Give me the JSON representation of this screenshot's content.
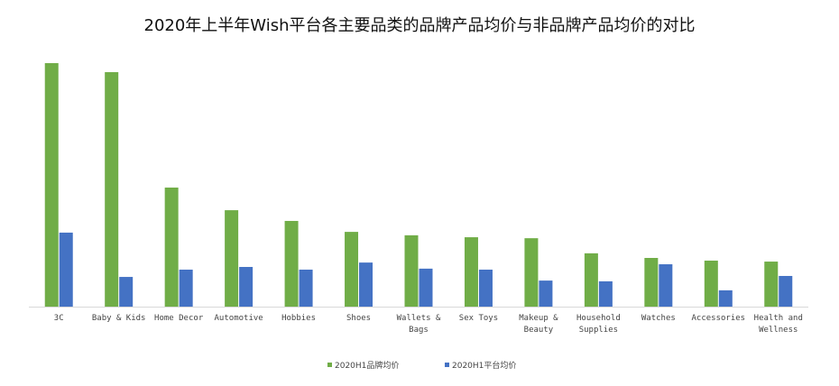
{
  "chart_data": {
    "type": "bar",
    "title": "2020年上半年Wish平台各主要品类的品牌产品均价与非品牌产品均价的对比",
    "categories": [
      [
        "3C"
      ],
      [
        "Baby & Kids"
      ],
      [
        "Home Decor"
      ],
      [
        "Automotive"
      ],
      [
        "Hobbies"
      ],
      [
        "Shoes"
      ],
      [
        "Wallets &",
        "Bags"
      ],
      [
        "Sex Toys"
      ],
      [
        "Makeup &",
        "Beauty"
      ],
      [
        "Household",
        "Supplies"
      ],
      [
        "Watches"
      ],
      [
        "Accessories"
      ],
      [
        "Health and",
        "Wellness"
      ]
    ],
    "series": [
      {
        "name": "2020H1品牌均价",
        "color": "#70ad47",
        "values": [
          100,
          96.3,
          48.9,
          39.6,
          35.2,
          30.7,
          29.3,
          28.5,
          28.1,
          21.9,
          20.0,
          18.9,
          18.5
        ]
      },
      {
        "name": "2020H1平台均价",
        "color": "#4472c4",
        "values": [
          30.4,
          12.2,
          15.2,
          16.3,
          15.2,
          18.1,
          15.6,
          15.2,
          10.7,
          10.4,
          17.4,
          6.7,
          12.6
        ]
      }
    ],
    "ylim": [
      0,
      100
    ],
    "grid": false,
    "y_axis_visible": false,
    "legend": "bottom"
  }
}
